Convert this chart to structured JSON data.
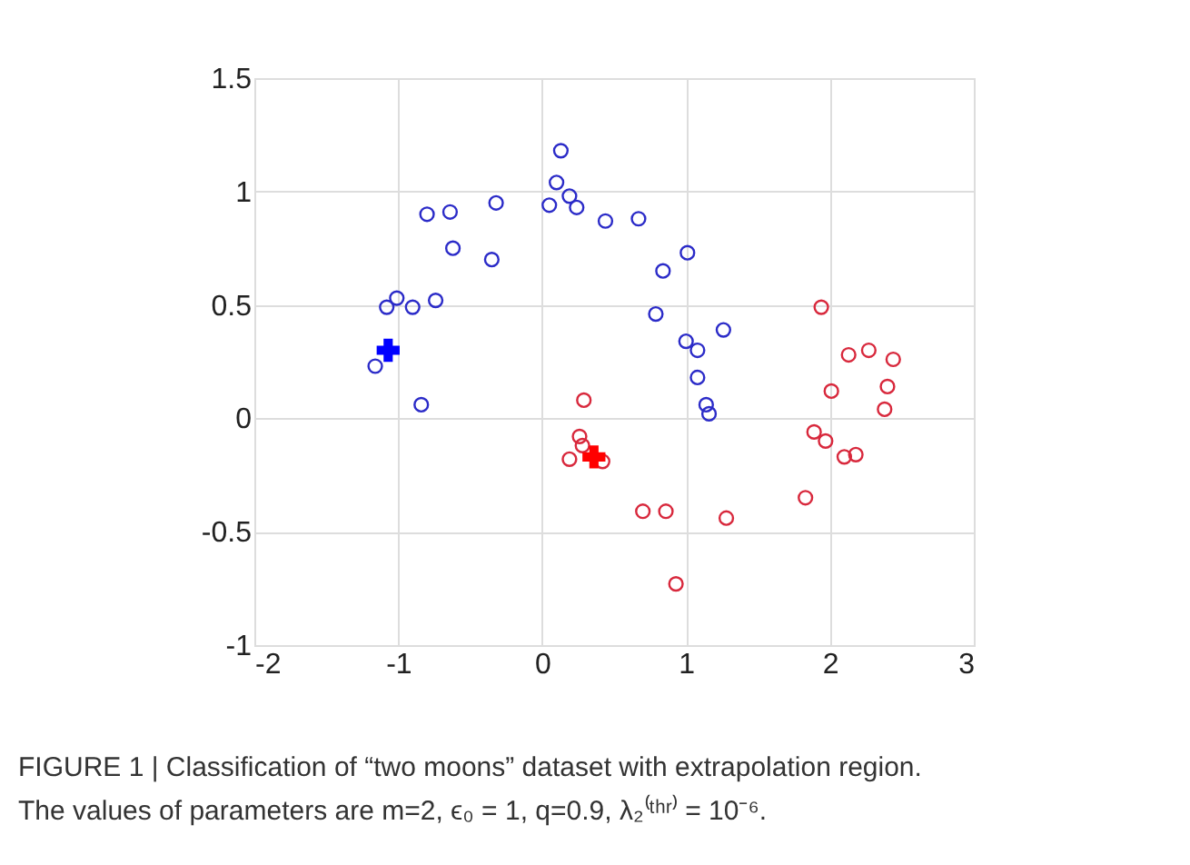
{
  "chart_data": {
    "type": "scatter",
    "xlim": [
      -2,
      3
    ],
    "ylim": [
      -1,
      1.5
    ],
    "xticks": [
      -2,
      -1,
      0,
      1,
      2,
      3
    ],
    "yticks": [
      -1,
      -0.5,
      0,
      0.5,
      1,
      1.5
    ],
    "grid": true,
    "series": [
      {
        "color": "#2b2bc8",
        "marker": "circle",
        "x": [
          -1.16,
          -1.08,
          -1.01,
          -0.9,
          -0.74,
          -0.84,
          -0.8,
          -0.64,
          -0.62,
          -0.32,
          -0.35,
          0.13,
          0.1,
          0.19,
          0.05,
          0.24,
          0.44,
          0.67,
          1.01,
          0.84,
          0.79,
          1.26,
          1.0,
          1.08,
          1.08,
          1.14,
          1.16
        ],
        "values": [
          0.23,
          0.49,
          0.53,
          0.49,
          0.52,
          0.06,
          0.9,
          0.91,
          0.75,
          0.95,
          0.7,
          1.18,
          1.04,
          0.98,
          0.94,
          0.93,
          0.87,
          0.88,
          0.73,
          0.65,
          0.46,
          0.39,
          0.34,
          0.3,
          0.18,
          0.06,
          0.02
        ]
      },
      {
        "color": "#d8283c",
        "marker": "circle",
        "x": [
          1.94,
          2.13,
          2.27,
          2.44,
          2.4,
          2.01,
          2.38,
          1.89,
          1.97,
          2.18,
          2.1,
          1.83,
          0.29,
          0.26,
          0.28,
          0.19,
          0.42,
          0.7,
          0.86,
          1.28,
          0.93
        ],
        "values": [
          0.49,
          0.28,
          0.3,
          0.26,
          0.14,
          0.12,
          0.04,
          -0.06,
          -0.1,
          -0.16,
          -0.17,
          -0.35,
          0.08,
          -0.08,
          -0.12,
          -0.18,
          -0.19,
          -0.41,
          -0.41,
          -0.44,
          -0.73
        ]
      },
      {
        "color": "#0000ff",
        "marker": "cross",
        "x": [
          -1.07
        ],
        "values": [
          0.3
        ]
      },
      {
        "color": "#ff0000",
        "marker": "cross",
        "x": [
          0.36
        ],
        "values": [
          -0.17
        ]
      }
    ],
    "annotations": [
      "FIGURE 1 | Classification of “two moons” dataset with extrapolation region.",
      "The values of parameters are m=2, ϵ₀ = 1, q=0.9, λ₂⁽ᵗʰʳ⁾ = 10⁻⁶."
    ]
  }
}
